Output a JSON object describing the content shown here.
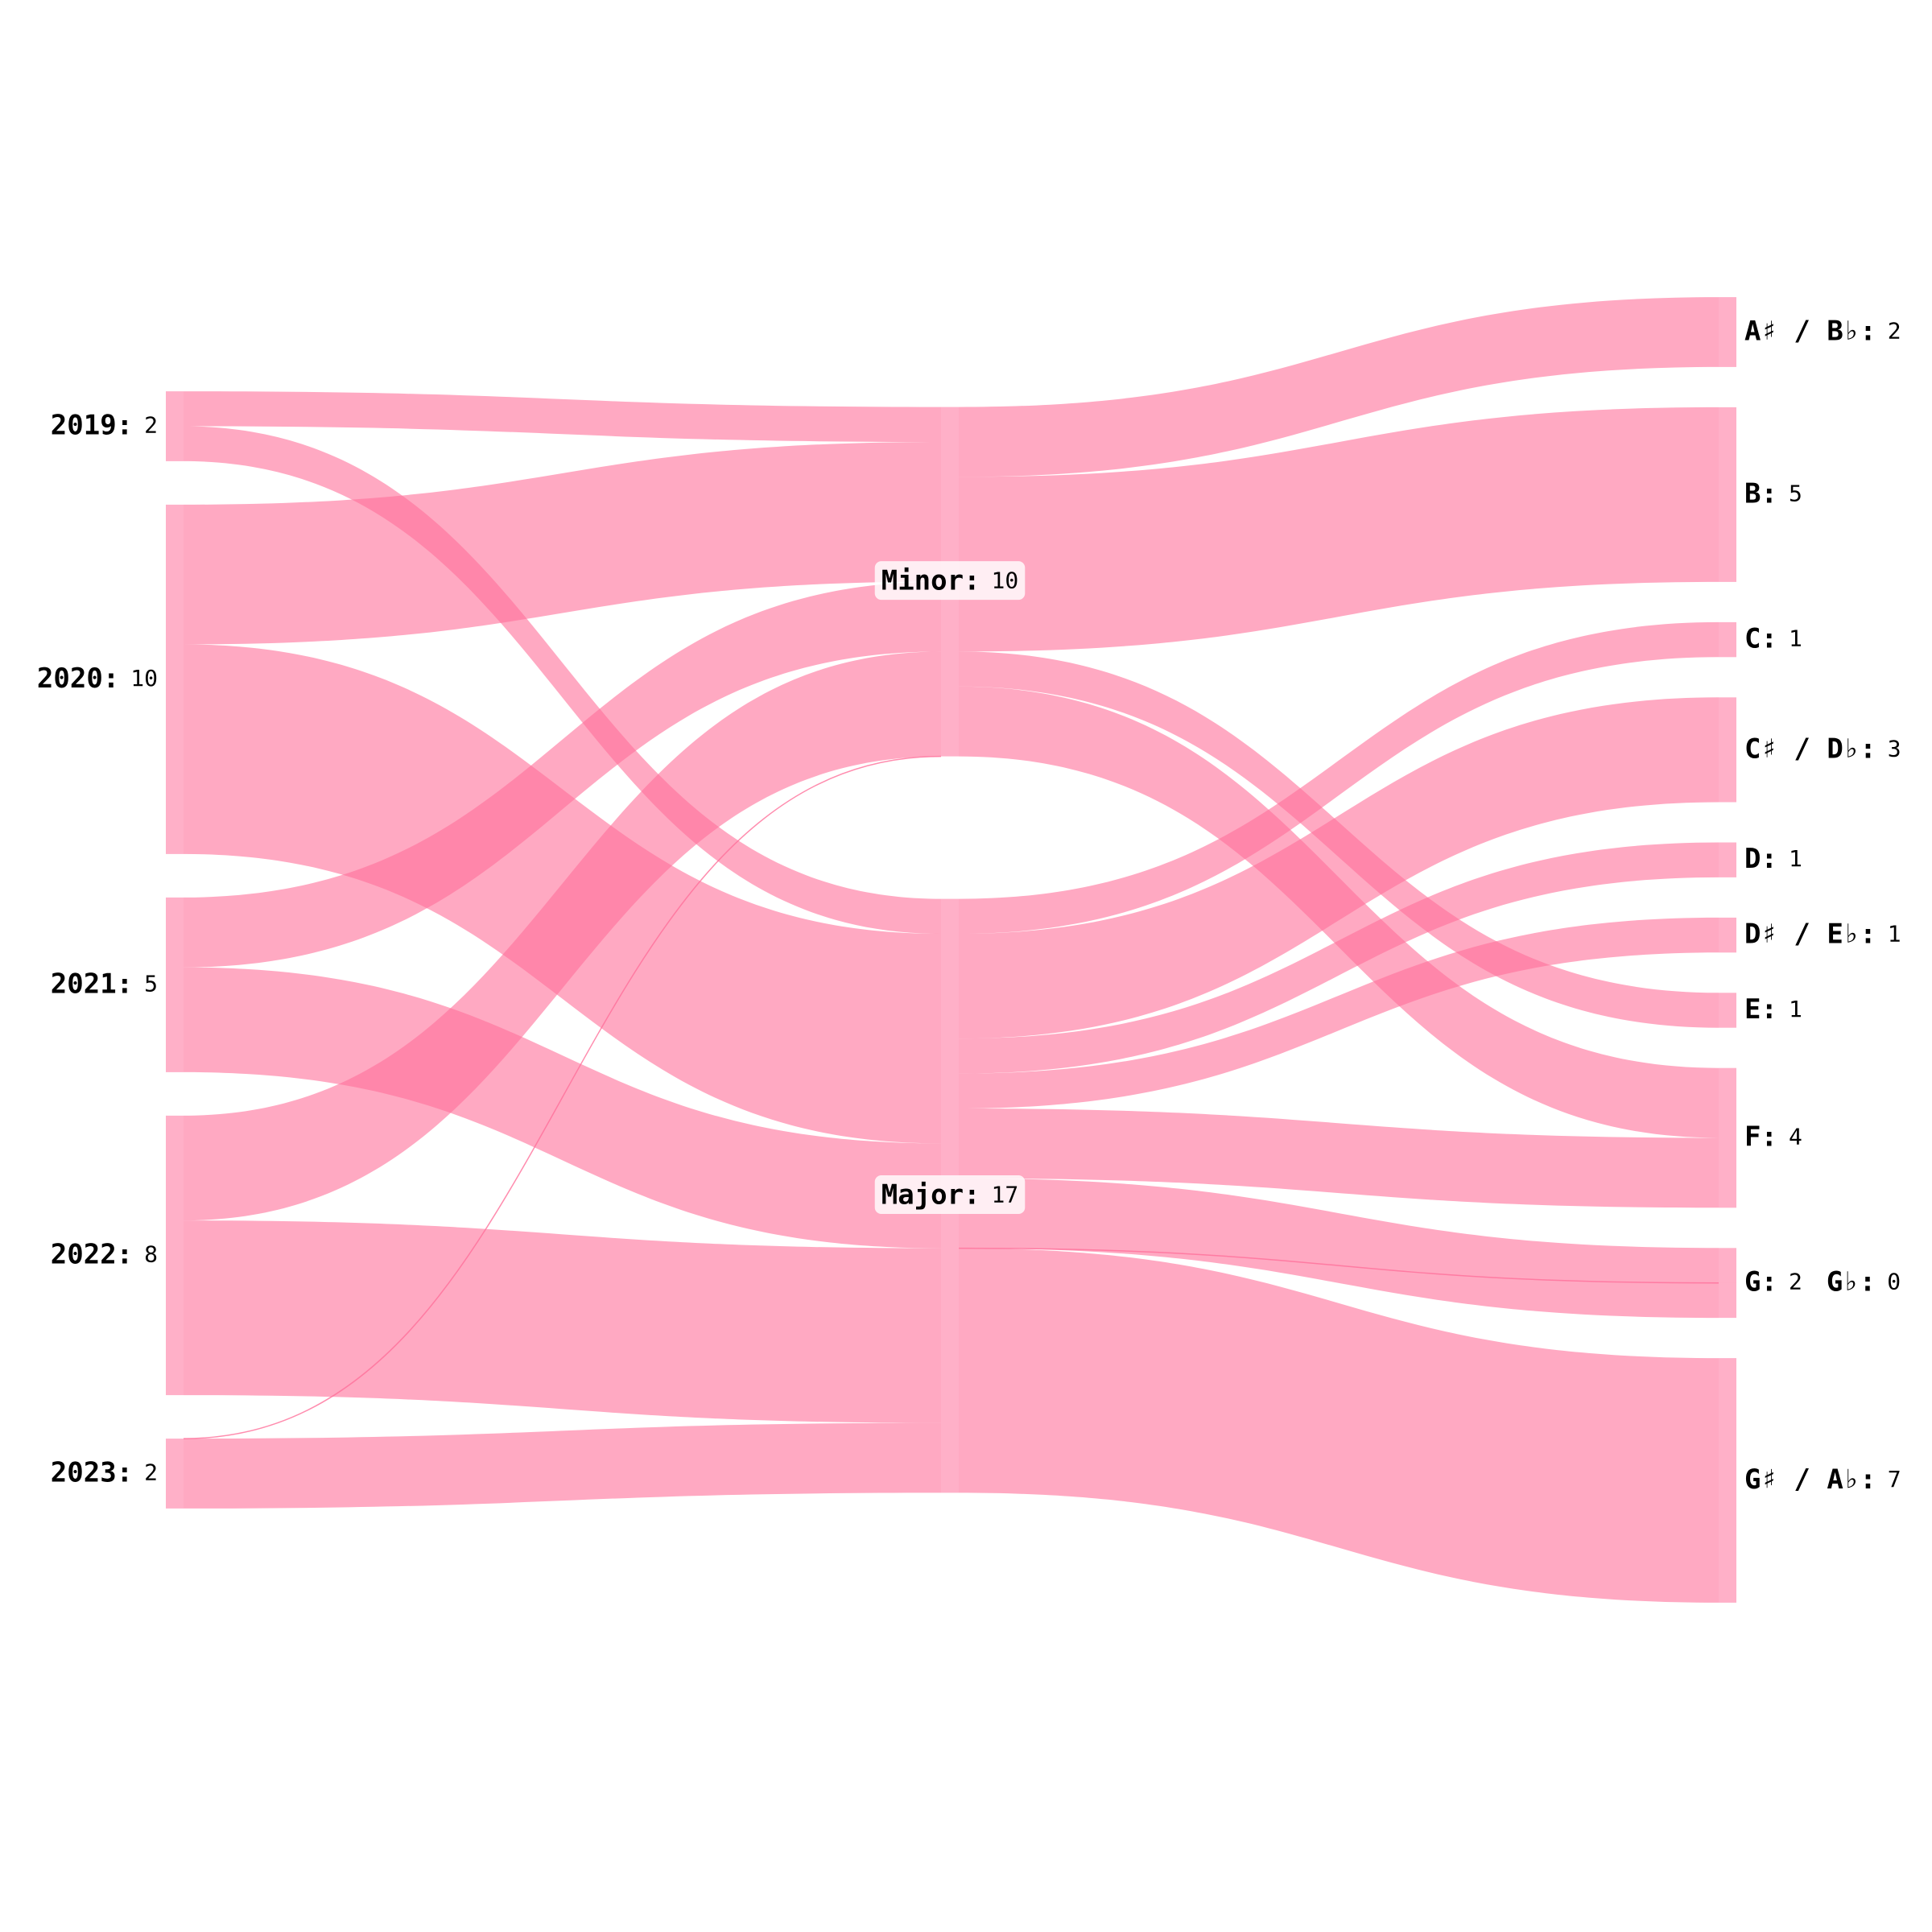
{
  "chart_data": {
    "type": "sankey",
    "nodes": [
      {
        "label": "2019:",
        "value": 2
      },
      {
        "label": "2020:",
        "value": 10
      },
      {
        "label": "2021:",
        "value": 5
      },
      {
        "label": "2022:",
        "value": 8
      },
      {
        "label": "2023:",
        "value": 2
      },
      {
        "label": "Minor:",
        "value": 10
      },
      {
        "label": "Major:",
        "value": 17
      },
      {
        "label": "A♯ / B♭:",
        "value": 2
      },
      {
        "label": "B:",
        "value": 5
      },
      {
        "label": "C:",
        "value": 1
      },
      {
        "label": "C♯ / D♭:",
        "value": 3
      },
      {
        "label": "D:",
        "value": 1
      },
      {
        "label": "D♯ / E♭:",
        "value": 1
      },
      {
        "label": "E:",
        "value": 1
      },
      {
        "label": "F:",
        "value": 4
      },
      {
        "label": "G:",
        "value": 2
      },
      {
        "label": "G♭:",
        "value": 0
      },
      {
        "label": "G♯ / A♭:",
        "value": 7
      }
    ],
    "links": [
      {
        "source": 0,
        "target": 5,
        "value": 1
      },
      {
        "source": 0,
        "target": 6,
        "value": 1
      },
      {
        "source": 1,
        "target": 5,
        "value": 4
      },
      {
        "source": 1,
        "target": 6,
        "value": 6
      },
      {
        "source": 2,
        "target": 5,
        "value": 2
      },
      {
        "source": 2,
        "target": 6,
        "value": 3
      },
      {
        "source": 3,
        "target": 5,
        "value": 3
      },
      {
        "source": 3,
        "target": 6,
        "value": 5
      },
      {
        "source": 4,
        "target": 5,
        "value": 0
      },
      {
        "source": 4,
        "target": 6,
        "value": 2
      },
      {
        "source": 5,
        "target": 7,
        "value": 2
      },
      {
        "source": 5,
        "target": 8,
        "value": 5
      },
      {
        "source": 5,
        "target": 13,
        "value": 1
      },
      {
        "source": 5,
        "target": 14,
        "value": 2
      },
      {
        "source": 6,
        "target": 9,
        "value": 1
      },
      {
        "source": 6,
        "target": 10,
        "value": 3
      },
      {
        "source": 6,
        "target": 11,
        "value": 1
      },
      {
        "source": 6,
        "target": 12,
        "value": 1
      },
      {
        "source": 6,
        "target": 14,
        "value": 2
      },
      {
        "source": 6,
        "target": 15,
        "value": 2
      },
      {
        "source": 6,
        "target": 16,
        "value": 0
      },
      {
        "source": 6,
        "target": 17,
        "value": 7
      }
    ],
    "color": "#ff6f9a"
  }
}
